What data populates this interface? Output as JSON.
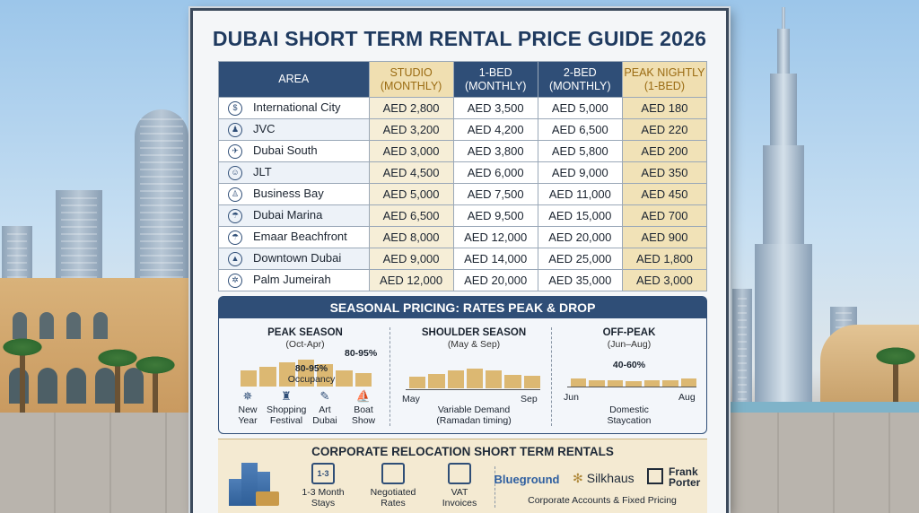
{
  "title": "DUBAI SHORT TERM RENTAL PRICE GUIDE 2026",
  "table": {
    "headers": {
      "area": "AREA",
      "studio": "STUDIO",
      "studio_sub": "(MONTHLY)",
      "one_bed": "1-BED",
      "one_bed_sub": "(MONTHLY)",
      "two_bed": "2-BED",
      "two_bed_sub": "(MONTHLY)",
      "peak": "PEAK NIGHTLY",
      "peak_sub": "(1-BED)"
    },
    "rows": [
      {
        "icon": "money-bag-icon",
        "area": "International City",
        "studio": "AED 2,800",
        "one_bed": "AED 3,500",
        "two_bed": "AED 5,000",
        "peak": "AED 180"
      },
      {
        "icon": "family-icon",
        "area": "JVC",
        "studio": "AED 3,200",
        "one_bed": "AED 4,200",
        "two_bed": "AED 6,500",
        "peak": "AED 220"
      },
      {
        "icon": "airplane-icon",
        "area": "Dubai South",
        "studio": "AED 3,000",
        "one_bed": "AED 3,800",
        "two_bed": "AED 5,800",
        "peak": "AED 200"
      },
      {
        "icon": "person-icon",
        "area": "JLT",
        "studio": "AED 4,500",
        "one_bed": "AED 6,000",
        "two_bed": "AED 9,000",
        "peak": "AED 350"
      },
      {
        "icon": "businessman-icon",
        "area": "Business Bay",
        "studio": "AED 5,000",
        "one_bed": "AED 7,500",
        "two_bed": "AED 11,000",
        "peak": "AED 450"
      },
      {
        "icon": "beach-icon",
        "area": "Dubai Marina",
        "studio": "AED 6,500",
        "one_bed": "AED 9,500",
        "two_bed": "AED 15,000",
        "peak": "AED 700"
      },
      {
        "icon": "umbrella-icon",
        "area": "Emaar Beachfront",
        "studio": "AED 8,000",
        "one_bed": "AED 12,000",
        "two_bed": "AED 20,000",
        "peak": "AED 900"
      },
      {
        "icon": "tower-icon",
        "area": "Downtown Dubai",
        "studio": "AED 9,000",
        "one_bed": "AED 14,000",
        "two_bed": "AED 25,000",
        "peak": "AED 1,800"
      },
      {
        "icon": "palm-icon",
        "area": "Palm Jumeirah",
        "studio": "AED 12,000",
        "one_bed": "AED 20,000",
        "two_bed": "AED 35,000",
        "peak": "AED 3,000"
      }
    ]
  },
  "seasonal": {
    "header": "SEASONAL PRICING: RATES PEAK & DROP",
    "peak": {
      "title": "PEAK SEASON",
      "months": "(Oct-Apr)",
      "range_label": "80-95%",
      "occupancy_value": "80-95%",
      "occupancy_label": "Occupancy",
      "bars": [
        0.55,
        0.68,
        0.85,
        0.95,
        0.78,
        0.55,
        0.48
      ],
      "events": [
        {
          "icon": "fireworks-icon",
          "line1": "New",
          "line2": "Year"
        },
        {
          "icon": "shopping-bag-icon",
          "line1": "Shopping",
          "line2": "Festival"
        },
        {
          "icon": "paintbrush-icon",
          "line1": "Art",
          "line2": "Dubai"
        },
        {
          "icon": "boat-icon",
          "line1": "Boat",
          "line2": "Show"
        }
      ]
    },
    "shoulder": {
      "title": "SHOULDER SEASON",
      "months": "(May & Sep)",
      "start": "May",
      "end": "Sep",
      "note1": "Variable Demand",
      "note2": "(Ramadan timing)",
      "bars": [
        0.35,
        0.45,
        0.55,
        0.6,
        0.55,
        0.42,
        0.38
      ]
    },
    "offpeak": {
      "title": "OFF-PEAK",
      "months": "(Jun–Aug)",
      "range_label": "40-60%",
      "start": "Jun",
      "end": "Aug",
      "note1": "Domestic",
      "note2": "Staycation",
      "bars": [
        0.3,
        0.25,
        0.22,
        0.2,
        0.22,
        0.25,
        0.3
      ]
    }
  },
  "corporate": {
    "header": "CORPORATE RELOCATION SHORT TERM RENTALS",
    "items": [
      {
        "icon": "calendar-icon",
        "badge": "1-3",
        "line1": "1-3 Month",
        "line2": "Stays"
      },
      {
        "icon": "briefcase-icon",
        "badge": "",
        "line1": "Negotiated",
        "line2": "Rates"
      },
      {
        "icon": "invoice-icon",
        "badge": "",
        "line1": "VAT",
        "line2": "Invoices"
      }
    ],
    "brands": [
      "Blueground",
      "Silkhaus",
      "Frank",
      "Porter"
    ],
    "tagline": "Corporate Accounts & Fixed Pricing"
  }
}
